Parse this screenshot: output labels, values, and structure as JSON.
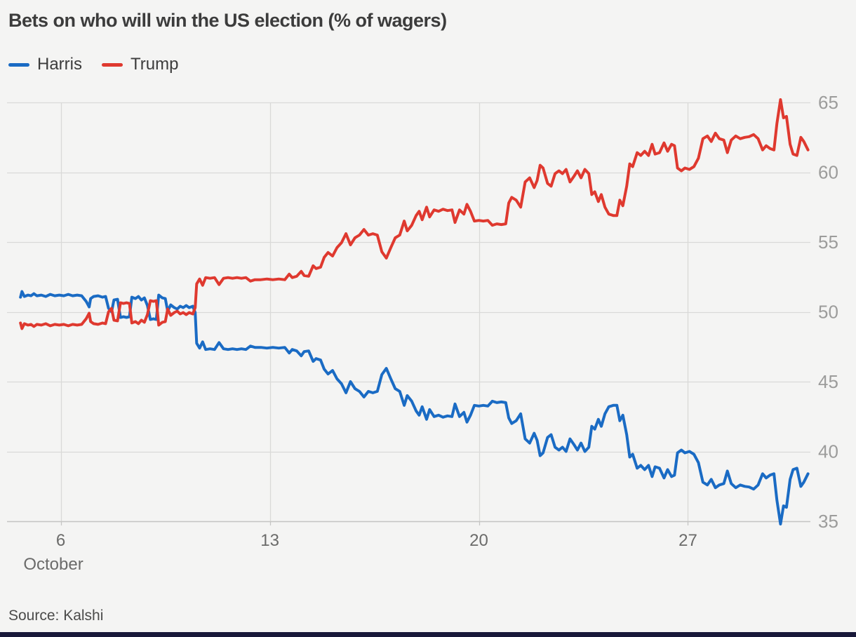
{
  "page": {
    "background": "#f4f4f3",
    "bottom_bar_color": "#181839"
  },
  "chart": {
    "title": "Bets on who will win the US election (% of wagers)",
    "source": "Source: Kalshi",
    "legend": [
      {
        "label": "Harris",
        "color": "#1a6bc4"
      },
      {
        "label": "Trump",
        "color": "#df392f"
      }
    ]
  },
  "chart_data": {
    "type": "line",
    "title": "Bets on who will win the US election (% of wagers)",
    "xlabel": "October",
    "ylabel": "% of wagers",
    "x_unit": "day of October",
    "xlim": [
      4.2,
      31.1
    ],
    "ylim": [
      35,
      65
    ],
    "grid": true,
    "legend_position": "top-left",
    "y_axis_side": "right",
    "y_ticks": [
      35,
      40,
      45,
      50,
      55,
      60,
      65
    ],
    "x_ticks": [
      {
        "value": 6,
        "label": "6"
      },
      {
        "value": 13,
        "label": "13"
      },
      {
        "value": 20,
        "label": "20"
      },
      {
        "value": 27,
        "label": "27"
      }
    ],
    "x_axis_secondary_label": "October",
    "x": [
      4.65,
      4.7,
      4.78,
      4.9,
      5.0,
      5.1,
      5.2,
      5.35,
      5.5,
      5.65,
      5.8,
      5.95,
      6.1,
      6.25,
      6.4,
      6.55,
      6.7,
      6.85,
      6.95,
      7.0,
      7.1,
      7.25,
      7.4,
      7.5,
      7.6,
      7.7,
      7.78,
      7.9,
      8.0,
      8.1,
      8.2,
      8.3,
      8.38,
      8.5,
      8.6,
      8.7,
      8.8,
      8.9,
      9.0,
      9.1,
      9.2,
      9.28,
      9.4,
      9.5,
      9.58,
      9.68,
      9.8,
      9.9,
      10.0,
      10.1,
      10.2,
      10.3,
      10.42,
      10.5,
      10.55,
      10.65,
      10.75,
      10.85,
      11.0,
      11.15,
      11.3,
      11.45,
      11.6,
      11.75,
      11.9,
      12.05,
      12.2,
      12.35,
      12.5,
      12.7,
      12.9,
      13.1,
      13.3,
      13.5,
      13.65,
      13.75,
      13.9,
      14.05,
      14.15,
      14.3,
      14.45,
      14.55,
      14.7,
      14.82,
      14.95,
      15.1,
      15.25,
      15.4,
      15.55,
      15.7,
      15.85,
      16.0,
      16.15,
      16.3,
      16.45,
      16.6,
      16.75,
      16.9,
      17.05,
      17.2,
      17.35,
      17.5,
      17.6,
      17.75,
      17.9,
      18.0,
      18.1,
      18.25,
      18.35,
      18.5,
      18.65,
      18.8,
      18.95,
      19.1,
      19.2,
      19.35,
      19.5,
      19.6,
      19.72,
      19.85,
      20.0,
      20.15,
      20.3,
      20.45,
      20.6,
      20.75,
      20.9,
      21.0,
      21.1,
      21.25,
      21.4,
      21.55,
      21.7,
      21.85,
      21.95,
      22.05,
      22.15,
      22.3,
      22.42,
      22.55,
      22.68,
      22.8,
      22.92,
      23.05,
      23.18,
      23.3,
      23.42,
      23.55,
      23.68,
      23.78,
      23.88,
      24.0,
      24.1,
      24.22,
      24.35,
      24.5,
      24.62,
      24.72,
      24.82,
      24.95,
      25.05,
      25.15,
      25.3,
      25.42,
      25.55,
      25.68,
      25.8,
      25.9,
      26.05,
      26.2,
      26.32,
      26.45,
      26.55,
      26.65,
      26.78,
      26.9,
      27.05,
      27.2,
      27.35,
      27.5,
      27.65,
      27.78,
      27.92,
      28.05,
      28.2,
      28.32,
      28.45,
      28.6,
      28.75,
      28.9,
      29.05,
      29.2,
      29.35,
      29.5,
      29.62,
      29.75,
      29.88,
      29.98,
      30.1,
      30.2,
      30.3,
      30.42,
      30.52,
      30.65,
      30.78,
      30.88,
      30.95,
      31.02
    ],
    "series": [
      {
        "name": "Harris",
        "color": "#1a6bc4",
        "values": [
          51.05,
          51.45,
          51.1,
          51.2,
          51.15,
          51.3,
          51.15,
          51.2,
          51.1,
          51.25,
          51.15,
          51.2,
          51.15,
          51.25,
          51.15,
          51.2,
          51.15,
          50.75,
          50.35,
          50.95,
          51.1,
          51.15,
          51.05,
          51.1,
          50.25,
          50.0,
          50.85,
          50.9,
          49.6,
          49.65,
          49.6,
          49.65,
          51.05,
          50.95,
          51.1,
          50.85,
          51.0,
          50.45,
          49.45,
          49.5,
          49.45,
          51.2,
          51.0,
          50.95,
          50.05,
          50.5,
          50.3,
          50.2,
          50.4,
          50.3,
          50.45,
          50.3,
          50.4,
          49.95,
          47.75,
          47.4,
          47.85,
          47.3,
          47.35,
          47.3,
          47.8,
          47.35,
          47.3,
          47.35,
          47.3,
          47.35,
          47.3,
          47.55,
          47.45,
          47.45,
          47.4,
          47.45,
          47.4,
          47.45,
          47.05,
          47.3,
          47.2,
          46.85,
          47.15,
          47.2,
          46.45,
          46.65,
          46.55,
          45.9,
          45.55,
          45.8,
          45.2,
          44.85,
          44.2,
          45.0,
          44.5,
          44.3,
          43.9,
          44.3,
          44.2,
          44.3,
          45.5,
          45.95,
          45.2,
          44.5,
          44.3,
          43.3,
          44.0,
          43.6,
          42.9,
          42.6,
          43.2,
          42.3,
          43.0,
          42.5,
          42.6,
          42.45,
          42.55,
          42.5,
          43.4,
          42.5,
          42.8,
          42.1,
          42.6,
          43.3,
          43.25,
          43.3,
          43.25,
          43.6,
          43.5,
          43.55,
          43.5,
          42.4,
          42.0,
          42.2,
          42.7,
          40.9,
          40.6,
          41.3,
          40.8,
          39.7,
          39.9,
          41.0,
          41.2,
          40.3,
          40.1,
          40.3,
          40.0,
          40.9,
          40.5,
          40.1,
          40.6,
          40.0,
          40.3,
          41.8,
          41.6,
          42.3,
          41.8,
          42.7,
          43.2,
          43.3,
          43.3,
          42.2,
          42.6,
          41.2,
          39.6,
          39.8,
          38.8,
          39.0,
          38.7,
          39.0,
          38.2,
          38.9,
          38.8,
          38.1,
          38.7,
          38.2,
          38.3,
          39.9,
          40.1,
          39.9,
          40.0,
          39.8,
          39.2,
          37.8,
          37.6,
          38.0,
          37.4,
          37.6,
          37.7,
          38.6,
          37.7,
          37.4,
          37.6,
          37.5,
          37.45,
          37.3,
          37.6,
          38.4,
          38.1,
          38.3,
          38.4,
          36.5,
          34.8,
          36.1,
          36.0,
          38.0,
          38.7,
          38.8,
          37.5,
          37.8,
          38.1,
          38.4
        ]
      },
      {
        "name": "Trump",
        "color": "#df392f",
        "values": [
          49.2,
          48.8,
          49.15,
          49.05,
          49.1,
          48.95,
          49.1,
          49.05,
          49.15,
          49.0,
          49.1,
          49.05,
          49.1,
          49.0,
          49.1,
          49.05,
          49.1,
          49.5,
          49.9,
          49.3,
          49.15,
          49.1,
          49.2,
          49.15,
          50.0,
          50.25,
          49.4,
          49.35,
          50.65,
          50.6,
          50.65,
          50.6,
          49.2,
          49.3,
          49.15,
          49.4,
          49.25,
          49.8,
          50.8,
          50.75,
          50.8,
          49.05,
          49.25,
          49.3,
          50.2,
          49.75,
          49.95,
          50.05,
          49.85,
          49.95,
          49.8,
          49.95,
          49.85,
          50.3,
          52.0,
          52.35,
          51.9,
          52.45,
          52.4,
          52.45,
          51.95,
          52.4,
          52.45,
          52.4,
          52.45,
          52.4,
          52.45,
          52.2,
          52.3,
          52.3,
          52.35,
          52.3,
          52.35,
          52.3,
          52.7,
          52.45,
          52.55,
          52.9,
          52.6,
          52.55,
          53.3,
          53.1,
          53.2,
          53.9,
          54.25,
          54.0,
          54.6,
          54.95,
          55.6,
          54.8,
          55.3,
          55.5,
          55.9,
          55.5,
          55.6,
          55.5,
          54.3,
          53.85,
          54.6,
          55.3,
          55.5,
          56.5,
          55.8,
          56.2,
          56.9,
          57.2,
          56.6,
          57.5,
          56.8,
          57.3,
          57.2,
          57.35,
          57.25,
          57.3,
          56.4,
          57.3,
          57.0,
          57.7,
          57.2,
          56.5,
          56.55,
          56.5,
          56.55,
          56.2,
          56.3,
          56.25,
          56.3,
          57.8,
          58.2,
          58.0,
          57.5,
          59.3,
          59.6,
          58.9,
          59.4,
          60.5,
          60.3,
          59.2,
          59.0,
          59.9,
          60.1,
          59.9,
          60.2,
          59.3,
          59.7,
          60.1,
          59.6,
          60.2,
          59.9,
          58.4,
          58.6,
          57.9,
          58.4,
          57.5,
          57.0,
          56.9,
          56.9,
          58.0,
          57.6,
          59.0,
          60.6,
          60.4,
          61.4,
          61.2,
          61.5,
          61.2,
          62.0,
          61.3,
          61.4,
          62.1,
          61.5,
          62.0,
          61.9,
          60.3,
          60.1,
          60.3,
          60.2,
          60.4,
          61.0,
          62.4,
          62.6,
          62.2,
          62.8,
          62.4,
          62.3,
          61.4,
          62.3,
          62.6,
          62.4,
          62.5,
          62.55,
          62.7,
          62.4,
          61.6,
          61.9,
          61.7,
          61.6,
          63.5,
          65.2,
          63.9,
          64.0,
          62.0,
          61.3,
          61.2,
          62.5,
          62.2,
          61.9,
          61.6
        ]
      }
    ]
  }
}
